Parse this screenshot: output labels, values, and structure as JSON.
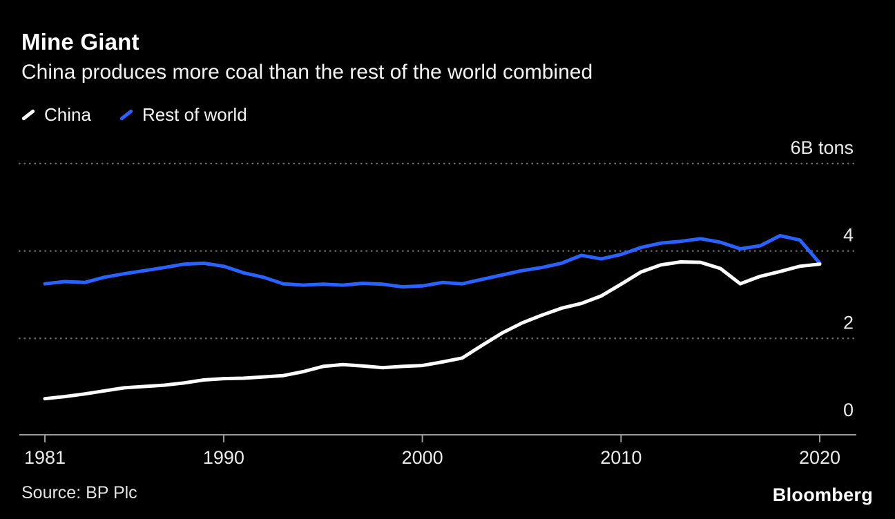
{
  "header": {
    "title": "Mine Giant",
    "subtitle": "China produces more coal than the rest of the world combined"
  },
  "legend": {
    "items": [
      {
        "label": "China",
        "color": "#ffffff"
      },
      {
        "label": "Rest of world",
        "color": "#2962ff"
      }
    ]
  },
  "footer": {
    "source": "Source: BP Plc",
    "brand": "Bloomberg"
  },
  "colors": {
    "background": "#000000",
    "grid": "#6f6f6f",
    "axis": "#9a9a9a",
    "tick_label": "#eaeaea",
    "china_line": "#ffffff",
    "rest_line": "#2962ff"
  },
  "chart_data": {
    "type": "line",
    "title": "Mine Giant",
    "subtitle": "China produces more coal than the rest of the world combined",
    "ylabel": "billion tons",
    "ylim": [
      0,
      6
    ],
    "grid": "dotted horizontal",
    "legend_position": "top-left",
    "x": [
      1981,
      1982,
      1983,
      1984,
      1985,
      1986,
      1987,
      1988,
      1989,
      1990,
      1991,
      1992,
      1993,
      1994,
      1995,
      1996,
      1997,
      1998,
      1999,
      2000,
      2001,
      2002,
      2003,
      2004,
      2005,
      2006,
      2007,
      2008,
      2009,
      2010,
      2011,
      2012,
      2013,
      2014,
      2015,
      2016,
      2017,
      2018,
      2019,
      2020
    ],
    "xticks": [
      1981,
      1990,
      2000,
      2010,
      2020
    ],
    "yticks": [
      {
        "value": 0,
        "label": "0"
      },
      {
        "value": 2,
        "label": "2"
      },
      {
        "value": 4,
        "label": "4"
      },
      {
        "value": 6,
        "label": "6B tons"
      }
    ],
    "gridline_values": [
      2,
      4,
      6
    ],
    "series": [
      {
        "name": "China",
        "color": "#ffffff",
        "values": [
          0.62,
          0.67,
          0.73,
          0.8,
          0.87,
          0.9,
          0.93,
          0.98,
          1.05,
          1.08,
          1.09,
          1.12,
          1.15,
          1.24,
          1.36,
          1.4,
          1.37,
          1.33,
          1.36,
          1.38,
          1.46,
          1.55,
          1.84,
          2.12,
          2.35,
          2.53,
          2.69,
          2.8,
          2.97,
          3.24,
          3.52,
          3.68,
          3.75,
          3.74,
          3.6,
          3.25,
          3.42,
          3.53,
          3.65,
          3.7
        ]
      },
      {
        "name": "Rest of world",
        "color": "#2962ff",
        "values": [
          3.25,
          3.3,
          3.28,
          3.4,
          3.48,
          3.55,
          3.62,
          3.7,
          3.72,
          3.65,
          3.5,
          3.4,
          3.25,
          3.22,
          3.24,
          3.22,
          3.26,
          3.24,
          3.18,
          3.2,
          3.28,
          3.25,
          3.35,
          3.45,
          3.55,
          3.62,
          3.72,
          3.9,
          3.82,
          3.92,
          4.08,
          4.18,
          4.22,
          4.28,
          4.2,
          4.05,
          4.12,
          4.35,
          4.25,
          3.72
        ]
      }
    ]
  }
}
